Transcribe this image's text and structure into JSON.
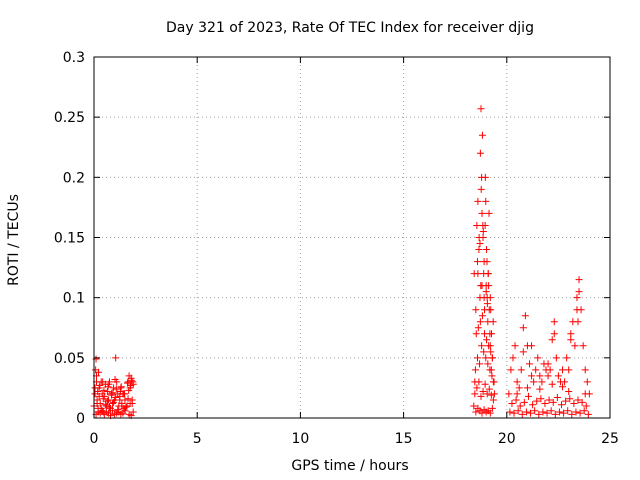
{
  "chart_data": {
    "type": "scatter",
    "title": "Day 321 of 2023, Rate Of TEC Index for receiver djig",
    "xlabel": "GPS time / hours",
    "ylabel": "ROTI / TECUs",
    "xlim": [
      0,
      25
    ],
    "ylim": [
      0,
      0.3
    ],
    "xticks": [
      0,
      5,
      10,
      15,
      20,
      25
    ],
    "yticks": [
      0,
      0.05,
      0.1,
      0.15,
      0.2,
      0.25,
      0.3
    ],
    "xtick_labels": [
      "0",
      "5",
      "10",
      "15",
      "20",
      "25"
    ],
    "ytick_labels": [
      "0",
      "0.05",
      "0.1",
      "0.15",
      "0.2",
      "0.25",
      "0.3"
    ],
    "grid": true,
    "marker": "+",
    "marker_color": "#ff0000",
    "series": [
      {
        "x": [
          0.0,
          0.05,
          0.08,
          0.1,
          0.12,
          0.15,
          0.2,
          0.22,
          0.25,
          0.3,
          0.35,
          0.4,
          0.45,
          0.5,
          0.55,
          0.6,
          0.65,
          0.7,
          0.75,
          0.8,
          0.85,
          0.9,
          0.95,
          1.0,
          1.05,
          1.1,
          1.15,
          1.2,
          1.25,
          1.3,
          1.35,
          1.4,
          1.45,
          1.5,
          1.6,
          1.65,
          1.7,
          1.75,
          1.8,
          1.85,
          1.9,
          0.1,
          0.2,
          0.3,
          0.4,
          0.5,
          0.6,
          0.7,
          0.8,
          0.9,
          1.0,
          1.1,
          1.2,
          1.3,
          1.4,
          1.5,
          1.7,
          1.8,
          1.9,
          0.15,
          0.35,
          0.55,
          0.75,
          0.95,
          1.15,
          1.35,
          1.55,
          1.75,
          0.25,
          0.45,
          0.65,
          0.85,
          1.05,
          1.25,
          1.45,
          1.65,
          1.85,
          0.05,
          0.18,
          0.28,
          0.48,
          0.68,
          0.88,
          1.08,
          1.28,
          1.48,
          1.68,
          1.78,
          1.88,
          0.12,
          0.42,
          0.72,
          1.02,
          1.32,
          1.62,
          1.82
        ],
        "y": [
          0.01,
          0.02,
          0.04,
          0.049,
          0.03,
          0.015,
          0.008,
          0.038,
          0.025,
          0.012,
          0.03,
          0.02,
          0.005,
          0.018,
          0.028,
          0.01,
          0.022,
          0.015,
          0.03,
          0.008,
          0.02,
          0.012,
          0.025,
          0.015,
          0.05,
          0.03,
          0.02,
          0.01,
          0.018,
          0.025,
          0.012,
          0.02,
          0.008,
          0.015,
          0.01,
          0.03,
          0.035,
          0.025,
          0.033,
          0.015,
          0.028,
          0.003,
          0.005,
          0.004,
          0.006,
          0.003,
          0.005,
          0.004,
          0.002,
          0.006,
          0.003,
          0.004,
          0.005,
          0.003,
          0.004,
          0.006,
          0.003,
          0.002,
          0.005,
          0.012,
          0.008,
          0.011,
          0.009,
          0.013,
          0.007,
          0.01,
          0.009,
          0.012,
          0.018,
          0.016,
          0.014,
          0.019,
          0.017,
          0.015,
          0.02,
          0.016,
          0.012,
          0.025,
          0.022,
          0.027,
          0.023,
          0.026,
          0.021,
          0.024,
          0.022,
          0.02,
          0.023,
          0.027,
          0.03,
          0.035,
          0.03,
          0.028,
          0.032,
          0.026,
          0.029,
          0.031
        ]
      },
      {
        "x": [
          18.4,
          18.45,
          18.5,
          18.55,
          18.6,
          18.65,
          18.7,
          18.72,
          18.75,
          18.78,
          18.8,
          18.82,
          18.85,
          18.88,
          18.9,
          18.92,
          18.95,
          18.98,
          19.0,
          19.02,
          19.05,
          19.08,
          19.1,
          19.12,
          19.15,
          19.18,
          19.2,
          19.25,
          19.3,
          19.35,
          19.4,
          18.5,
          18.6,
          18.7,
          18.8,
          18.9,
          19.0,
          19.1,
          19.2,
          19.3,
          18.45,
          18.55,
          18.65,
          18.75,
          18.85,
          18.95,
          19.05,
          19.15,
          19.25,
          19.35,
          18.48,
          18.58,
          18.68,
          18.78,
          18.88,
          18.98,
          19.08,
          19.18,
          19.28,
          19.38,
          18.52,
          18.62,
          18.72,
          18.82,
          18.92,
          19.02,
          19.12,
          19.22,
          18.42,
          18.58,
          18.74,
          18.9,
          19.06,
          19.22,
          19.34,
          18.66,
          18.84,
          19.1,
          19.26,
          18.76,
          18.96,
          19.14,
          18.7,
          18.86,
          19.04,
          19.2,
          18.6,
          18.8,
          19.0,
          19.3
        ],
        "y": [
          0.01,
          0.03,
          0.09,
          0.16,
          0.18,
          0.14,
          0.1,
          0.22,
          0.257,
          0.2,
          0.17,
          0.235,
          0.15,
          0.12,
          0.13,
          0.09,
          0.16,
          0.18,
          0.11,
          0.14,
          0.1,
          0.08,
          0.12,
          0.11,
          0.09,
          0.07,
          0.06,
          0.04,
          0.05,
          0.03,
          0.02,
          0.005,
          0.008,
          0.006,
          0.004,
          0.007,
          0.005,
          0.006,
          0.004,
          0.008,
          0.02,
          0.025,
          0.03,
          0.018,
          0.022,
          0.028,
          0.02,
          0.024,
          0.019,
          0.015,
          0.04,
          0.05,
          0.045,
          0.06,
          0.055,
          0.05,
          0.045,
          0.04,
          0.035,
          0.03,
          0.07,
          0.075,
          0.08,
          0.085,
          0.07,
          0.065,
          0.06,
          0.055,
          0.12,
          0.13,
          0.11,
          0.1,
          0.095,
          0.09,
          0.08,
          0.15,
          0.16,
          0.12,
          0.07,
          0.19,
          0.2,
          0.17,
          0.145,
          0.155,
          0.13,
          0.1,
          0.12,
          0.11,
          0.105,
          0.05
        ]
      },
      {
        "x": [
          20.1,
          20.2,
          20.3,
          20.4,
          20.5,
          20.6,
          20.7,
          20.8,
          20.9,
          21.0,
          21.1,
          21.2,
          21.3,
          21.4,
          21.5,
          21.6,
          21.7,
          21.8,
          21.9,
          22.0,
          22.1,
          22.2,
          22.3,
          22.4,
          22.5,
          22.6,
          22.7,
          22.8,
          22.9,
          23.0,
          23.1,
          23.2,
          23.3,
          23.4,
          23.5,
          23.6,
          23.7,
          23.8,
          23.9,
          24.0,
          20.15,
          20.35,
          20.55,
          20.75,
          20.95,
          21.15,
          21.35,
          21.55,
          21.75,
          21.95,
          22.15,
          22.35,
          22.55,
          22.75,
          22.95,
          23.15,
          23.35,
          23.55,
          23.75,
          23.95,
          20.25,
          20.45,
          20.65,
          20.85,
          21.05,
          21.25,
          21.45,
          21.65,
          21.85,
          22.05,
          22.25,
          22.45,
          22.65,
          22.85,
          23.05,
          23.25,
          23.45,
          23.65,
          23.85,
          20.8,
          21.2,
          22.0,
          22.3,
          23.1,
          23.4,
          23.5,
          23.45,
          21.0,
          22.2,
          23.0,
          20.5,
          21.6,
          22.7,
          23.8
        ],
        "y": [
          0.02,
          0.04,
          0.05,
          0.06,
          0.03,
          0.025,
          0.04,
          0.055,
          0.085,
          0.06,
          0.045,
          0.035,
          0.03,
          0.04,
          0.05,
          0.035,
          0.03,
          0.045,
          0.04,
          0.035,
          0.04,
          0.065,
          0.08,
          0.05,
          0.035,
          0.03,
          0.04,
          0.03,
          0.05,
          0.04,
          0.07,
          0.08,
          0.06,
          0.09,
          0.115,
          0.09,
          0.06,
          0.04,
          0.03,
          0.02,
          0.005,
          0.004,
          0.006,
          0.003,
          0.005,
          0.004,
          0.006,
          0.003,
          0.005,
          0.004,
          0.006,
          0.003,
          0.005,
          0.004,
          0.006,
          0.003,
          0.005,
          0.004,
          0.006,
          0.003,
          0.012,
          0.015,
          0.01,
          0.013,
          0.018,
          0.011,
          0.014,
          0.016,
          0.012,
          0.015,
          0.013,
          0.017,
          0.011,
          0.014,
          0.016,
          0.012,
          0.015,
          0.013,
          0.01,
          0.075,
          0.06,
          0.045,
          0.07,
          0.065,
          0.1,
          0.105,
          0.08,
          0.025,
          0.028,
          0.022,
          0.02,
          0.024,
          0.026,
          0.02
        ]
      }
    ]
  }
}
